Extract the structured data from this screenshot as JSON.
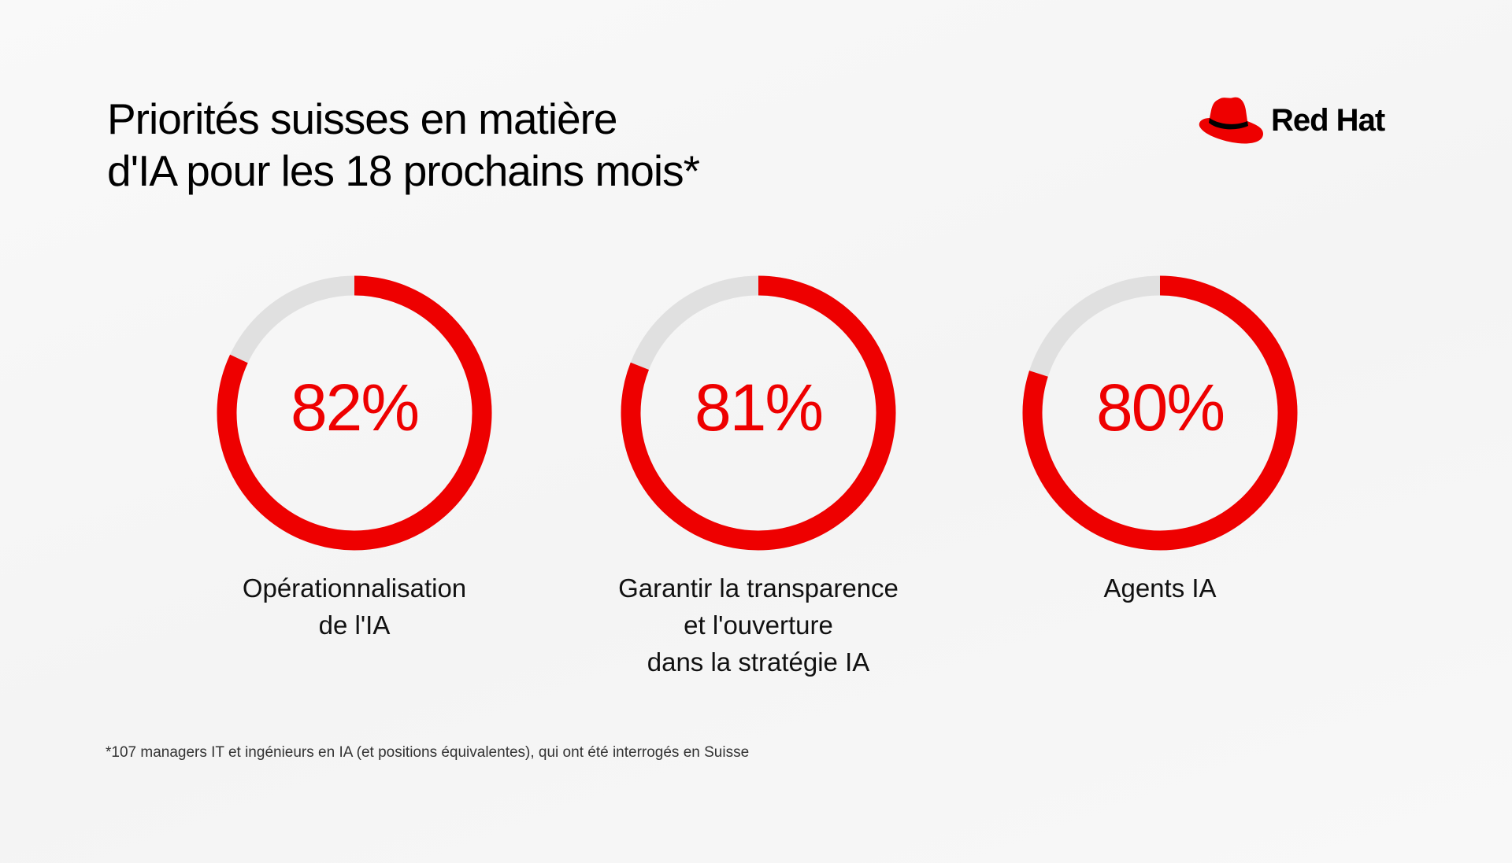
{
  "header": {
    "title_lines": [
      "Priorités suisses en matière",
      "d'IA pour les 18 prochains mois*"
    ],
    "logo_text": "Red Hat"
  },
  "colors": {
    "accent": "#ee0000",
    "track": "#e0e0e0",
    "text": "#000000"
  },
  "chart_data": {
    "type": "donut",
    "title": "Priorités suisses en matière d'IA pour les 18 prochains mois*",
    "max": 100,
    "unit": "%",
    "items": [
      {
        "value": 82,
        "display": "82%",
        "label_lines": [
          "Opérationnalisation",
          "de l'IA"
        ]
      },
      {
        "value": 81,
        "display": "81%",
        "label_lines": [
          "Garantir la transparence",
          "et l'ouverture",
          "dans la stratégie IA"
        ]
      },
      {
        "value": 80,
        "display": "80%",
        "label_lines": [
          "Agents IA"
        ]
      }
    ]
  },
  "footnote": "*107 managers IT et ingénieurs en IA (et positions équivalentes), qui ont été interrogés en Suisse"
}
